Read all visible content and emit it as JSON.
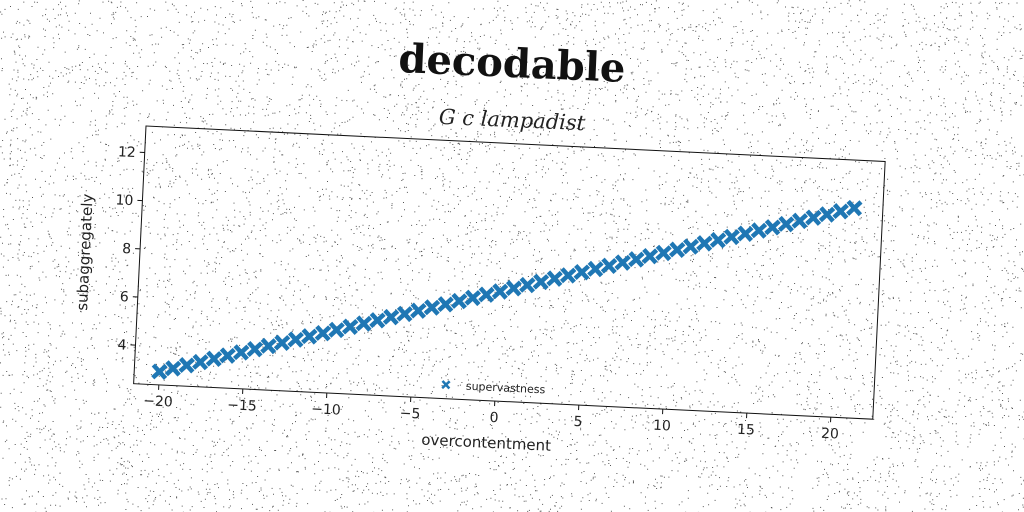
{
  "title": "decodable",
  "subtitle": "G c lampadist",
  "colors": {
    "series": "#1f77b4",
    "axis": "#111111",
    "background": "#ffffff"
  },
  "chart_data": {
    "type": "scatter",
    "xlabel": "overcontentment",
    "ylabel": "subaggregately",
    "xlim": [
      -21.5,
      22.5
    ],
    "ylim": [
      2.4,
      13.1
    ],
    "xticks": [
      -20,
      -15,
      -10,
      -5,
      0,
      5,
      10,
      15,
      20
    ],
    "yticks": [
      4,
      6,
      8,
      10,
      12
    ],
    "grid": false,
    "legend_position": "bottom-center",
    "marker": "x",
    "series": [
      {
        "name": "supervastness",
        "x_start": -20,
        "x_end": 21,
        "x_step": 0.8,
        "y_intercept": 6.95,
        "y_slope": 0.2
      }
    ]
  }
}
